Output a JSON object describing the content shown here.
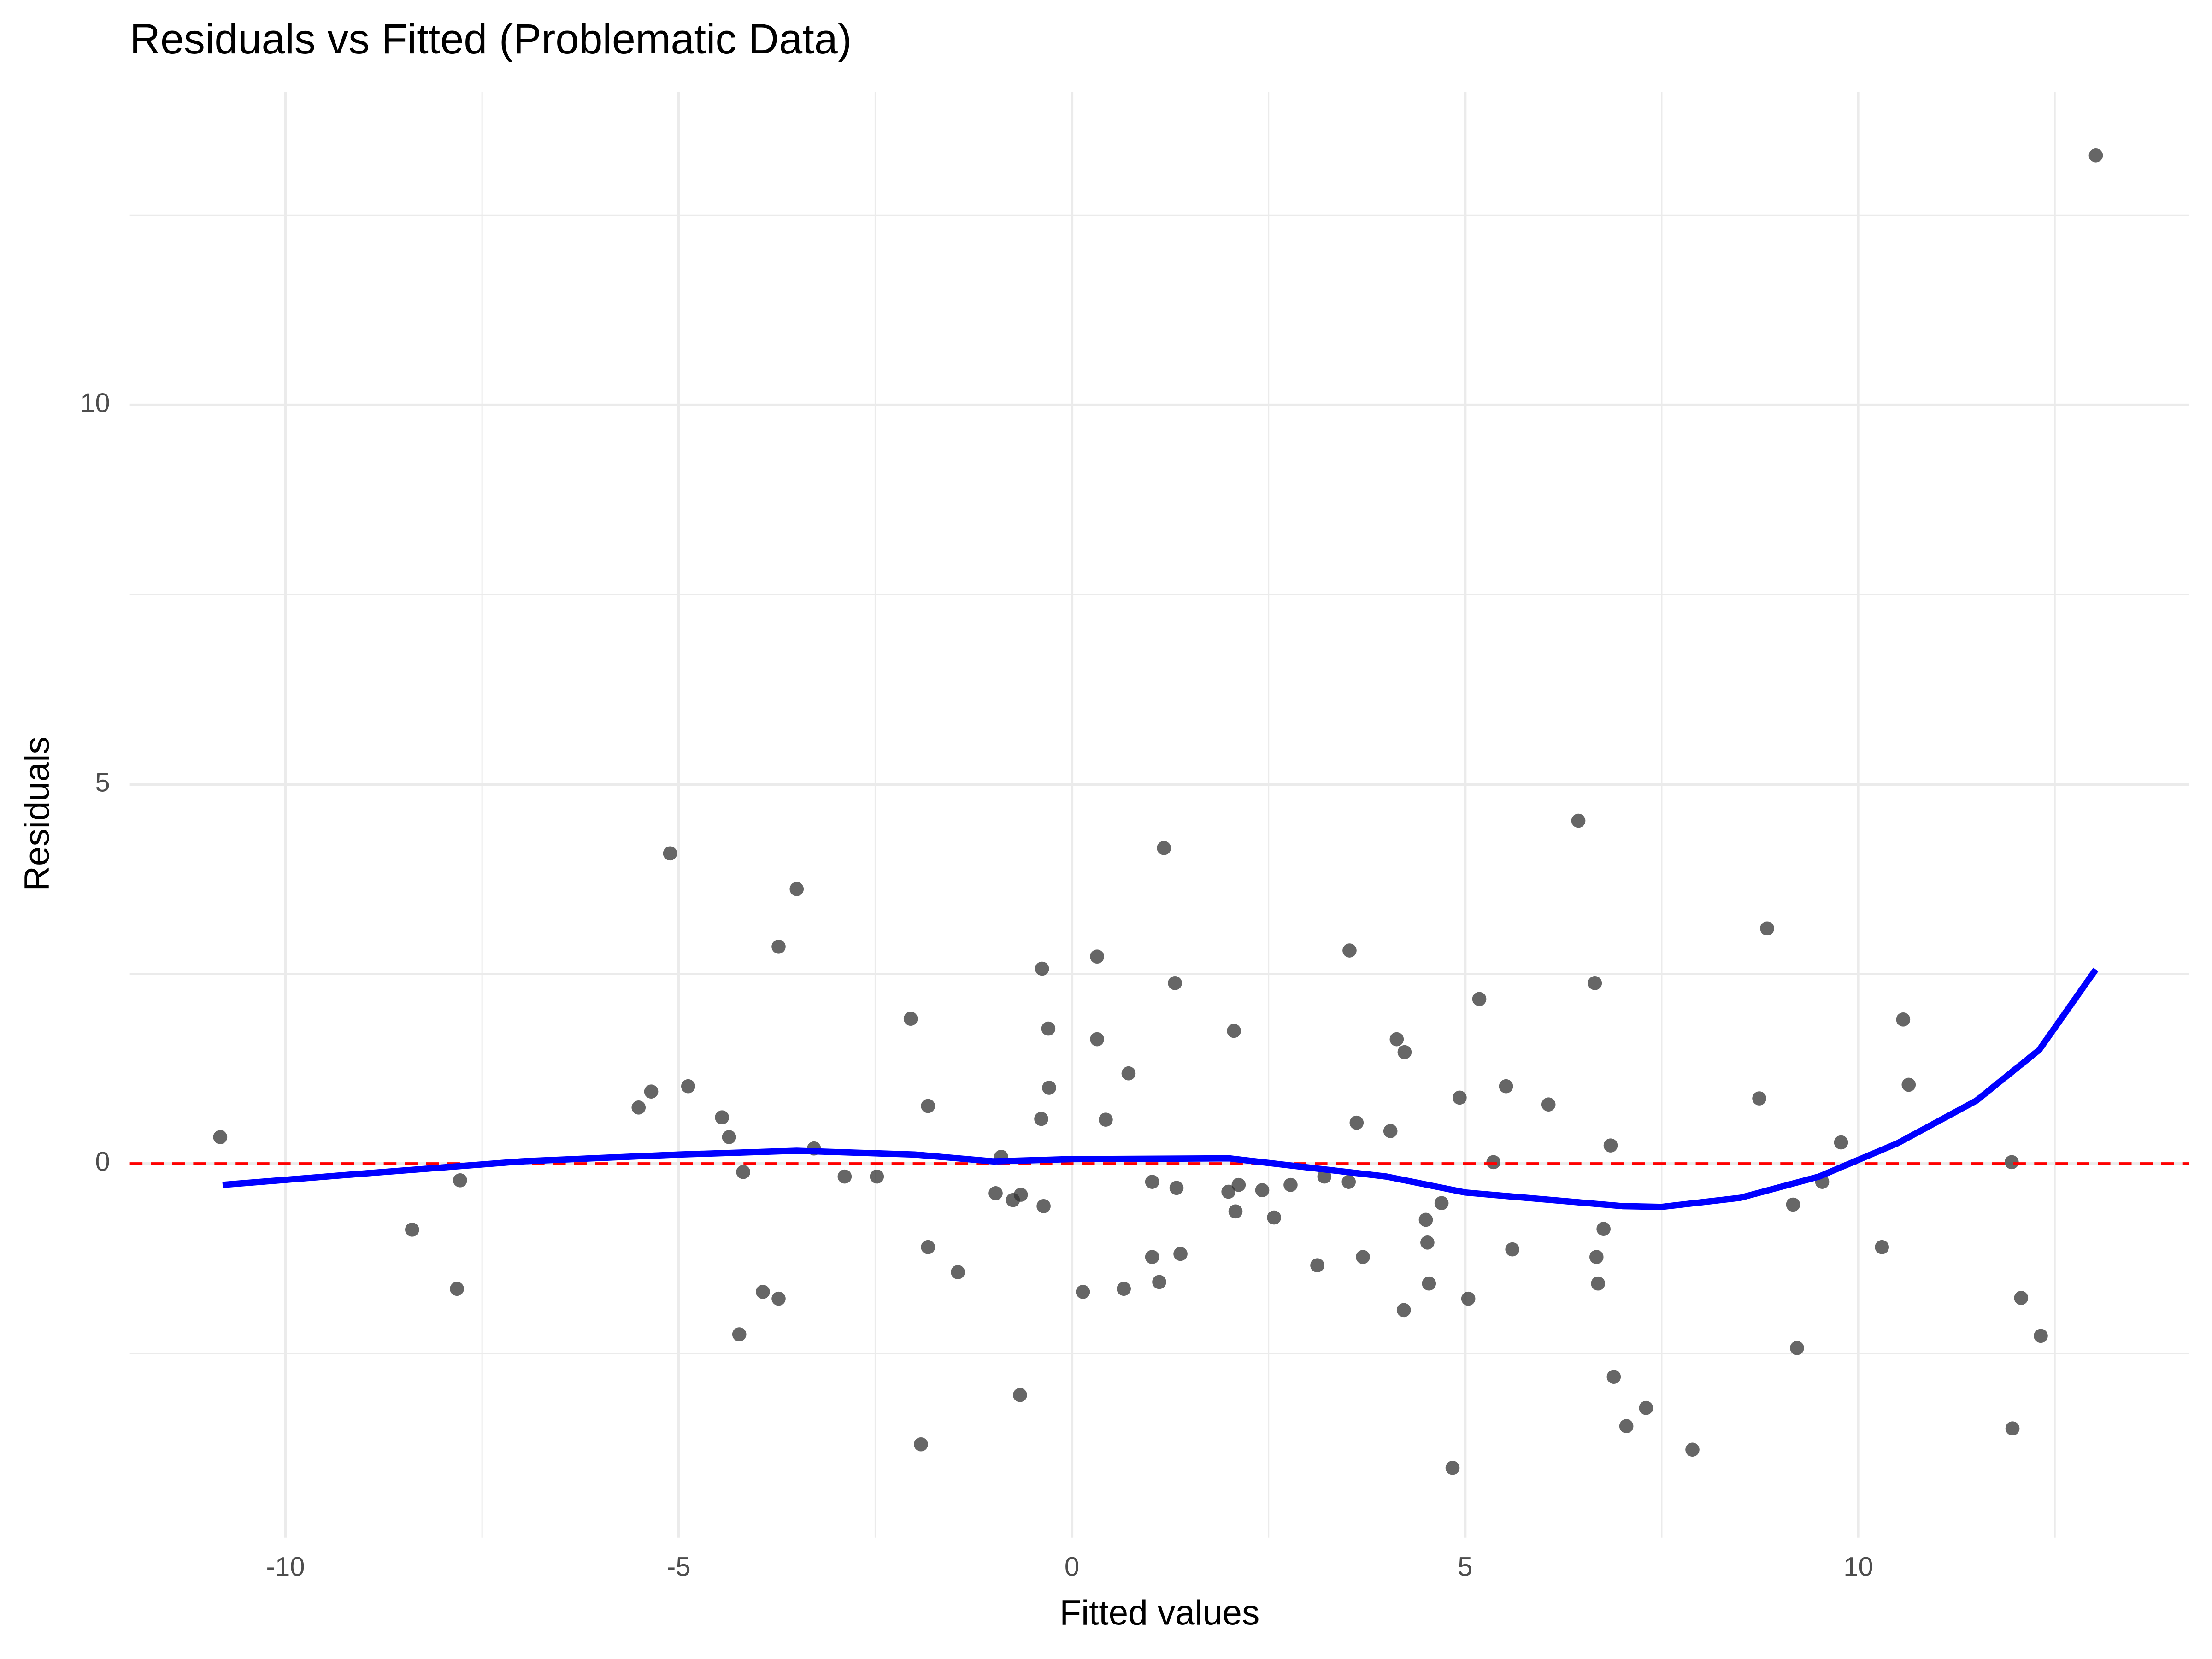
{
  "chart_data": {
    "type": "scatter",
    "title": "Residuals vs Fitted (Problematic Data)",
    "x_label": "Fitted values",
    "y_label": "Residuals",
    "xlim": [
      -11.98,
      14.21
    ],
    "ylim": [
      -4.93,
      14.13
    ],
    "xticks": [
      -10,
      -5,
      0,
      5,
      10
    ],
    "yticks": [
      0,
      5,
      10
    ],
    "x_minor_ticks": [
      -7.5,
      -2.5,
      2.5,
      7.5,
      12.5
    ],
    "y_minor_ticks": [
      -2.5,
      2.5,
      7.5,
      12.5
    ],
    "grid": true,
    "series": [
      {
        "color": "#333333",
        "x": [
          -10.83,
          -8.39,
          -7.82,
          -7.78,
          -5.51,
          -5.35,
          -5.11,
          -4.88,
          -4.45,
          -4.36,
          -4.23,
          -4.18,
          -3.93,
          -3.73,
          -3.73,
          -3.5,
          -3.28,
          -2.89,
          -2.48,
          -2.05,
          -1.92,
          -1.83,
          -1.83,
          -1.45,
          -0.97,
          -0.9,
          -0.75,
          -0.66,
          -0.65,
          -0.39,
          -0.38,
          -0.36,
          -0.3,
          -0.29,
          0.14,
          0.32,
          0.32,
          0.43,
          0.66,
          0.72,
          1.02,
          1.02,
          1.11,
          1.17,
          1.31,
          1.33,
          1.38,
          1.99,
          2.06,
          2.08,
          2.12,
          2.42,
          2.57,
          2.78,
          3.12,
          3.21,
          3.52,
          3.53,
          3.62,
          3.7,
          4.05,
          4.13,
          4.22,
          4.23,
          4.5,
          4.52,
          4.54,
          4.7,
          4.84,
          4.93,
          5.04,
          5.18,
          5.36,
          5.52,
          5.6,
          6.06,
          6.44,
          6.65,
          6.67,
          6.69,
          6.76,
          6.85,
          6.89,
          7.05,
          7.3,
          7.89,
          8.74,
          8.84,
          9.17,
          9.22,
          9.54,
          9.78,
          10.3,
          10.57,
          10.64,
          11.95,
          11.96,
          12.07,
          12.32,
          13.02
        ],
        "values": [
          0.35,
          -0.87,
          -1.65,
          -0.22,
          0.74,
          0.95,
          4.09,
          1.02,
          0.61,
          0.35,
          -2.25,
          -0.11,
          -1.69,
          -1.78,
          2.86,
          3.62,
          0.2,
          -0.17,
          -0.17,
          1.91,
          -3.7,
          -1.1,
          0.76,
          -1.43,
          -0.39,
          0.09,
          -0.48,
          -3.05,
          -0.41,
          0.59,
          2.57,
          -0.56,
          1.78,
          1.0,
          -1.69,
          2.73,
          1.64,
          0.58,
          -1.65,
          1.19,
          -0.24,
          -1.23,
          -1.56,
          4.16,
          2.38,
          -0.32,
          -1.19,
          -0.37,
          1.75,
          -0.63,
          -0.28,
          -0.35,
          -0.71,
          -0.28,
          -1.34,
          -0.17,
          -0.24,
          2.81,
          0.54,
          -1.23,
          0.43,
          1.64,
          -1.93,
          1.47,
          -0.74,
          -1.04,
          -1.58,
          -0.52,
          -4.01,
          0.87,
          -1.78,
          2.17,
          0.02,
          1.02,
          -1.13,
          0.78,
          4.52,
          2.38,
          -1.23,
          -1.58,
          -0.86,
          0.24,
          -2.81,
          -3.46,
          -3.22,
          -3.77,
          0.86,
          3.1,
          -0.54,
          -2.43,
          -0.24,
          0.28,
          -1.1,
          1.9,
          1.04,
          0.02,
          -3.49,
          -1.77,
          -2.27,
          13.29
        ]
      }
    ],
    "smooth": {
      "color": "#0000ff",
      "x": [
        -10.8,
        -9,
        -7,
        -5,
        -3.5,
        -2,
        -1,
        0,
        2,
        3,
        4,
        5,
        6,
        7,
        7.5,
        8.5,
        9.5,
        10.5,
        11.5,
        12.3,
        13.02
      ],
      "values": [
        -0.28,
        -0.13,
        0.03,
        0.12,
        0.17,
        0.12,
        0.03,
        0.06,
        0.07,
        -0.05,
        -0.17,
        -0.38,
        -0.47,
        -0.56,
        -0.57,
        -0.45,
        -0.17,
        0.27,
        0.83,
        1.5,
        2.56
      ]
    },
    "hline": {
      "value": 0,
      "color": "#ff0000"
    }
  }
}
